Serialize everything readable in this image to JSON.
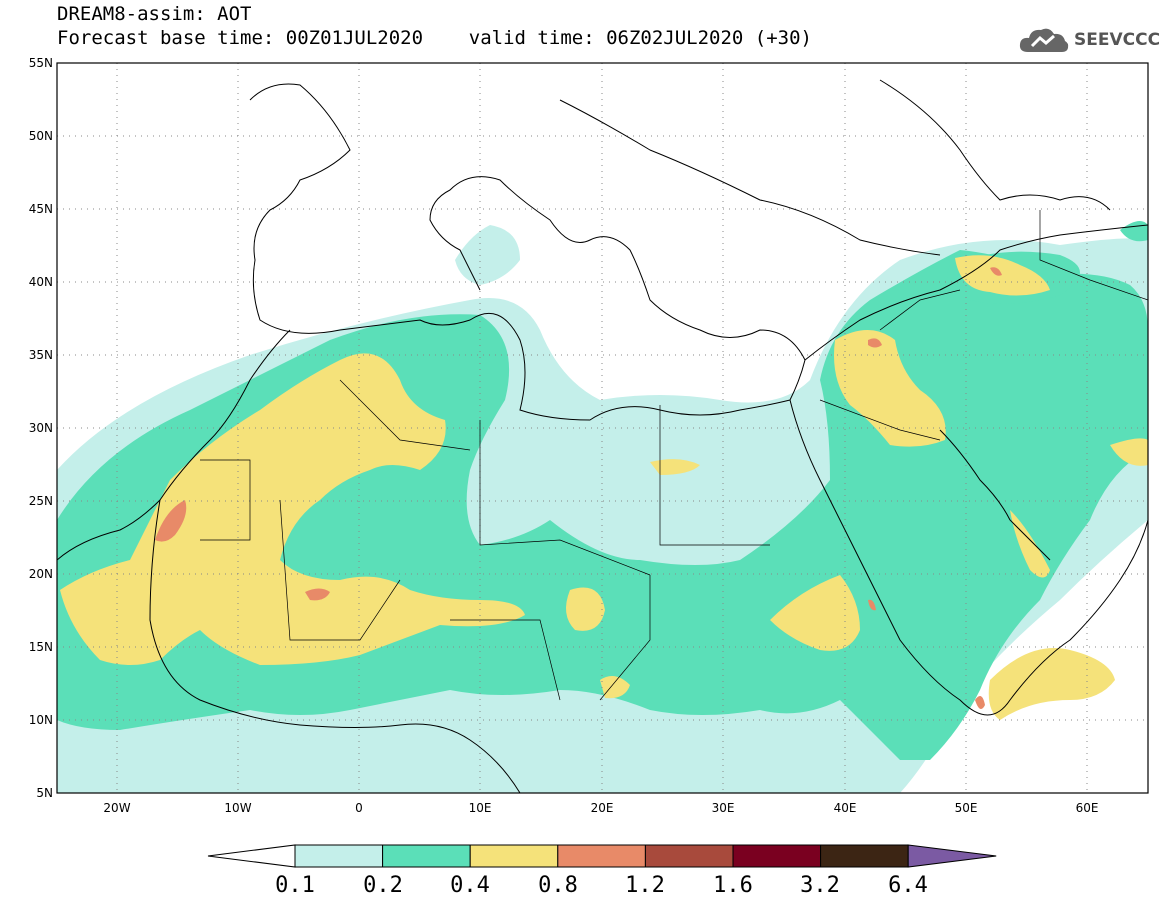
{
  "header": {
    "title": "DREAM8-assim: AOT",
    "subtitle": "Forecast base time: 00Z01JUL2020    valid time: 06Z02JUL2020 (+30)"
  },
  "logo": {
    "text": "SEEVCCC",
    "icon": "cloud-icon"
  },
  "map": {
    "lat_labels": [
      "55N",
      "50N",
      "45N",
      "40N",
      "35N",
      "30N",
      "25N",
      "20N",
      "15N",
      "10N",
      "5N"
    ],
    "lon_labels": [
      "20W",
      "10W",
      "0",
      "10E",
      "20E",
      "30E",
      "40E",
      "50E",
      "60E"
    ],
    "projection": "lat-lon",
    "extent": {
      "lon": [
        -25,
        65
      ],
      "lat": [
        5,
        55
      ]
    },
    "grid": "dotted"
  },
  "colorbar": {
    "labels": [
      "0.1",
      "0.2",
      "0.4",
      "0.8",
      "1.2",
      "1.6",
      "3.2",
      "6.4"
    ],
    "colors": [
      "#ffffff",
      "#c4efea",
      "#5bdfb8",
      "#f5e27a",
      "#e88a68",
      "#a84a3c",
      "#7a0020",
      "#3c2514",
      "#7b5aa3"
    ]
  },
  "palette": {
    "lightcyan": "#c4efea",
    "green": "#5bdfb8",
    "yellow": "#f5e27a",
    "salmon": "#e88a68"
  }
}
